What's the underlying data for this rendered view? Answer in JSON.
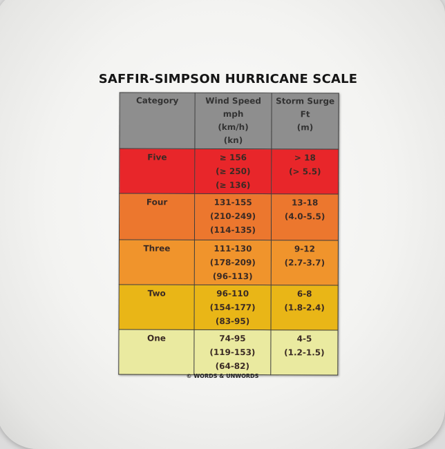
{
  "title": "SAFFIR-SIMPSON HURRICANE SCALE",
  "table": {
    "headers": [
      [
        "Category"
      ],
      [
        "Wind Speed",
        "mph",
        "(km/h)",
        "(kn)"
      ],
      [
        "Storm Surge",
        "Ft",
        "(m)"
      ]
    ],
    "rows": [
      {
        "category": "Five",
        "color": "#e8262a",
        "wind": [
          "≥ 156",
          "(≥ 250)",
          "(≥ 136)"
        ],
        "surge": [
          "> 18",
          "(> 5.5)"
        ]
      },
      {
        "category": "Four",
        "color": "#ec772e",
        "wind": [
          "131-155",
          "(210-249)",
          "(114-135)"
        ],
        "surge": [
          "13-18",
          "(4.0-5.5)"
        ]
      },
      {
        "category": "Three",
        "color": "#f0942c",
        "wind": [
          "111-130",
          "(178-209)",
          "(96-113)"
        ],
        "surge": [
          "9-12",
          "(2.7-3.7)"
        ]
      },
      {
        "category": "Two",
        "color": "#e9b617",
        "wind": [
          "96-110",
          "(154-177)",
          "(83-95)"
        ],
        "surge": [
          "6-8",
          "(1.8-2.4)"
        ]
      },
      {
        "category": "One",
        "color": "#eaeaa0",
        "wind": [
          "74-95",
          "(119-153)",
          "(64-82)"
        ],
        "surge": [
          "4-5",
          "(1.2-1.5)"
        ]
      }
    ],
    "header_color": "#8e8e8e"
  },
  "footer": "© WORDS & UNWORDS"
}
